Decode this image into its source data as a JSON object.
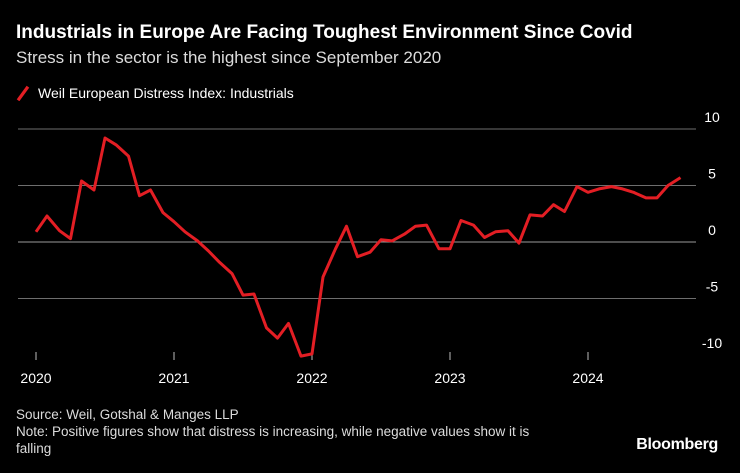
{
  "header": {
    "title": "Industrials in Europe Are Facing Toughest Environment Since Covid",
    "subtitle": "Stress in the sector is the highest since September 2020"
  },
  "legend": {
    "label": "Weil European Distress Index: Industrials"
  },
  "footer": {
    "source": "Source: Weil, Gotshal & Manges LLP",
    "note_line1": "Note: Positive figures show that distress is increasing, while negative values show it is",
    "note_line2": "falling"
  },
  "brand": "Bloomberg",
  "colors": {
    "series": "#e31e24",
    "grid": "#6e6e6e",
    "zero_line": "#9a9a9a",
    "background": "#000000"
  },
  "chart_data": {
    "type": "line",
    "title": "Industrials in Europe Are Facing Toughest Environment Since Covid",
    "subtitle": "Stress in the sector is the highest since September 2020",
    "xlabel": "",
    "ylabel": "",
    "xlim": [
      2020.0,
      2024.83
    ],
    "ylim": [
      -10,
      10
    ],
    "yticks": [
      10,
      5,
      0,
      -5,
      -10
    ],
    "xticks": [
      {
        "value": 2020,
        "label": "2020"
      },
      {
        "value": 2021,
        "label": "2021"
      },
      {
        "value": 2022,
        "label": "2022"
      },
      {
        "value": 2023,
        "label": "2023"
      },
      {
        "value": 2024,
        "label": "2024"
      }
    ],
    "legend_position": "top-left",
    "series": [
      {
        "name": "Weil European Distress Index: Industrials",
        "points": [
          [
            2020.0,
            0.9
          ],
          [
            2020.08,
            2.3
          ],
          [
            2020.17,
            1.0
          ],
          [
            2020.25,
            0.3
          ],
          [
            2020.33,
            5.4
          ],
          [
            2020.42,
            4.6
          ],
          [
            2020.5,
            9.2
          ],
          [
            2020.58,
            8.6
          ],
          [
            2020.67,
            7.6
          ],
          [
            2020.75,
            4.1
          ],
          [
            2020.83,
            4.6
          ],
          [
            2020.92,
            2.6
          ],
          [
            2021.0,
            1.8
          ],
          [
            2021.08,
            0.9
          ],
          [
            2021.17,
            0.1
          ],
          [
            2021.25,
            -0.8
          ],
          [
            2021.33,
            -1.8
          ],
          [
            2021.42,
            -2.8
          ],
          [
            2021.5,
            -4.7
          ],
          [
            2021.58,
            -4.6
          ],
          [
            2021.67,
            -7.6
          ],
          [
            2021.75,
            -8.5
          ],
          [
            2021.83,
            -7.2
          ],
          [
            2021.92,
            -10.1
          ],
          [
            2022.0,
            -9.9
          ],
          [
            2022.08,
            -3.1
          ],
          [
            2022.17,
            -0.6
          ],
          [
            2022.25,
            1.4
          ],
          [
            2022.33,
            -1.3
          ],
          [
            2022.42,
            -0.9
          ],
          [
            2022.5,
            0.2
          ],
          [
            2022.58,
            0.1
          ],
          [
            2022.67,
            0.7
          ],
          [
            2022.75,
            1.4
          ],
          [
            2022.83,
            1.5
          ],
          [
            2022.92,
            -0.6
          ],
          [
            2023.0,
            -0.6
          ],
          [
            2023.08,
            1.9
          ],
          [
            2023.17,
            1.5
          ],
          [
            2023.25,
            0.4
          ],
          [
            2023.33,
            0.9
          ],
          [
            2023.42,
            1.0
          ],
          [
            2023.5,
            -0.1
          ],
          [
            2023.58,
            2.4
          ],
          [
            2023.67,
            2.3
          ],
          [
            2023.75,
            3.3
          ],
          [
            2023.83,
            2.7
          ],
          [
            2023.92,
            4.9
          ],
          [
            2024.0,
            4.4
          ],
          [
            2024.08,
            4.7
          ],
          [
            2024.17,
            4.9
          ],
          [
            2024.25,
            4.7
          ],
          [
            2024.33,
            4.4
          ],
          [
            2024.42,
            3.9
          ],
          [
            2024.5,
            3.9
          ],
          [
            2024.58,
            5.0
          ],
          [
            2024.67,
            5.7
          ]
        ]
      }
    ]
  }
}
